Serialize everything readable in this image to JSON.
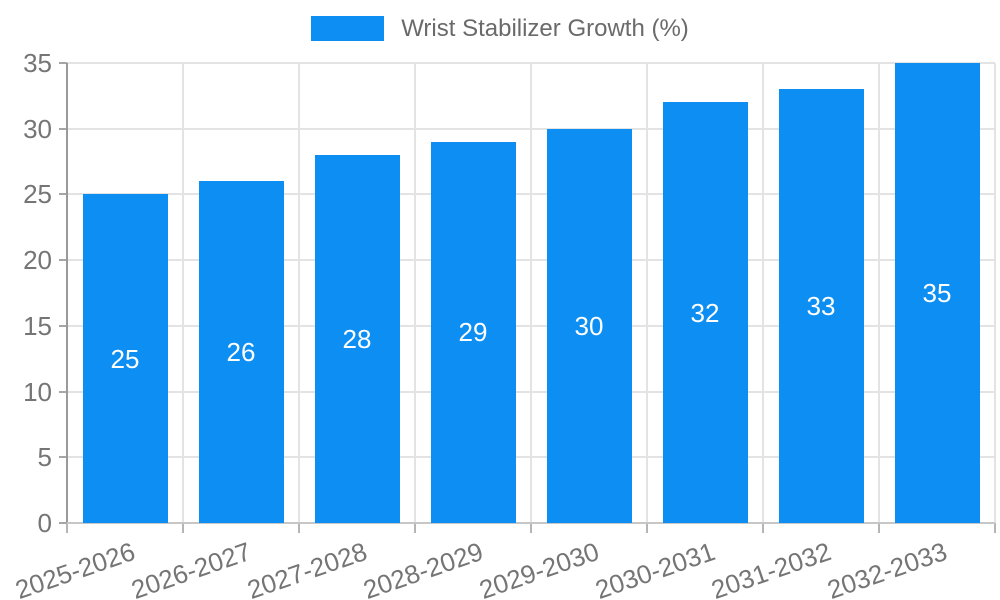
{
  "chart_data": {
    "type": "bar",
    "title": "",
    "legend": "Wrist Stabilizer Growth (%)",
    "legend_position": "top-center",
    "categories": [
      "2025-2026",
      "2026-2027",
      "2027-2028",
      "2028-2029",
      "2029-2030",
      "2030-2031",
      "2031-2032",
      "2032-2033"
    ],
    "values": [
      25,
      26,
      28,
      29,
      30,
      32,
      33,
      35
    ],
    "value_labels_visible": true,
    "xlabel": "",
    "ylabel": "",
    "ylim": [
      0,
      35
    ],
    "yticks": [
      0,
      5,
      10,
      15,
      20,
      25,
      30,
      35
    ],
    "grid": true,
    "x_label_rotation_deg": -19,
    "colors": {
      "bar": "#0d8ef2",
      "value_label": "#ffffff",
      "tick_label": "#757575",
      "legend_text": "#6a6a6a",
      "gridline": "#e3e3e3",
      "y_axis_line": "#9a9a9a",
      "x_axis_line": "#c7c7c7"
    }
  }
}
